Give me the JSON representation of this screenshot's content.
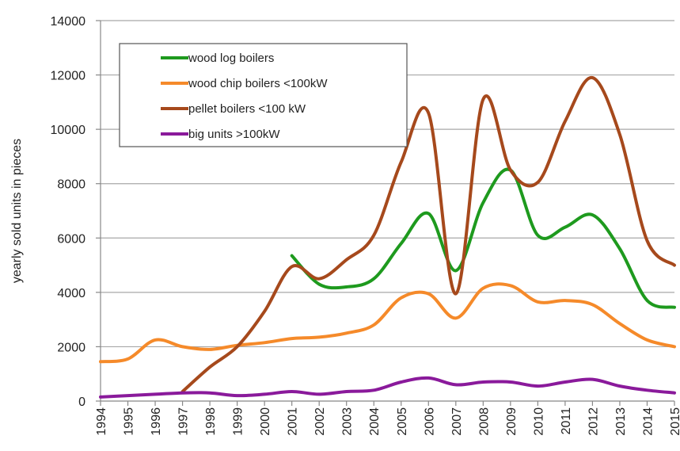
{
  "chart_data": {
    "type": "line",
    "title": "",
    "xlabel": "",
    "ylabel": "yearly sold units in pieces",
    "x": [
      "1994",
      "1995",
      "1996",
      "1997",
      "1998",
      "1999",
      "2000",
      "2001",
      "2002",
      "2003",
      "2004",
      "2005",
      "2006",
      "2007",
      "2008",
      "2009",
      "2010",
      "2011",
      "2012",
      "2013",
      "2014",
      "2015"
    ],
    "ylim": [
      0,
      14000
    ],
    "yticks": [
      "0",
      "2000",
      "4000",
      "6000",
      "8000",
      "10000",
      "12000",
      "14000"
    ],
    "grid": "horizontal",
    "legend_position": "top-left",
    "series": [
      {
        "name": "wood log boilers",
        "color": "#1e9a1e",
        "values": [
          null,
          null,
          null,
          null,
          null,
          null,
          null,
          5350,
          4300,
          4200,
          4500,
          5800,
          6900,
          4800,
          7300,
          8500,
          6100,
          6400,
          6850,
          5600,
          3700,
          3450
        ]
      },
      {
        "name": "wood chip boilers <100kW",
        "color": "#f58a2a",
        "values": [
          1450,
          1550,
          2250,
          2000,
          1900,
          2050,
          2150,
          2300,
          2350,
          2500,
          2800,
          3800,
          3950,
          3050,
          4150,
          4250,
          3650,
          3700,
          3550,
          2850,
          2250,
          2000
        ]
      },
      {
        "name": "pellet boilers <100 kW",
        "color": "#a6491c",
        "values": [
          null,
          null,
          null,
          350,
          1250,
          2000,
          3300,
          4950,
          4500,
          5200,
          6100,
          8800,
          10600,
          3950,
          11100,
          8500,
          8050,
          10300,
          11900,
          9800,
          5900,
          5000
        ]
      },
      {
        "name": "big units >100kW",
        "color": "#8a1a9b",
        "values": [
          150,
          200,
          250,
          300,
          300,
          200,
          250,
          350,
          250,
          350,
          400,
          700,
          850,
          600,
          700,
          700,
          550,
          700,
          800,
          550,
          400,
          300
        ]
      }
    ]
  }
}
